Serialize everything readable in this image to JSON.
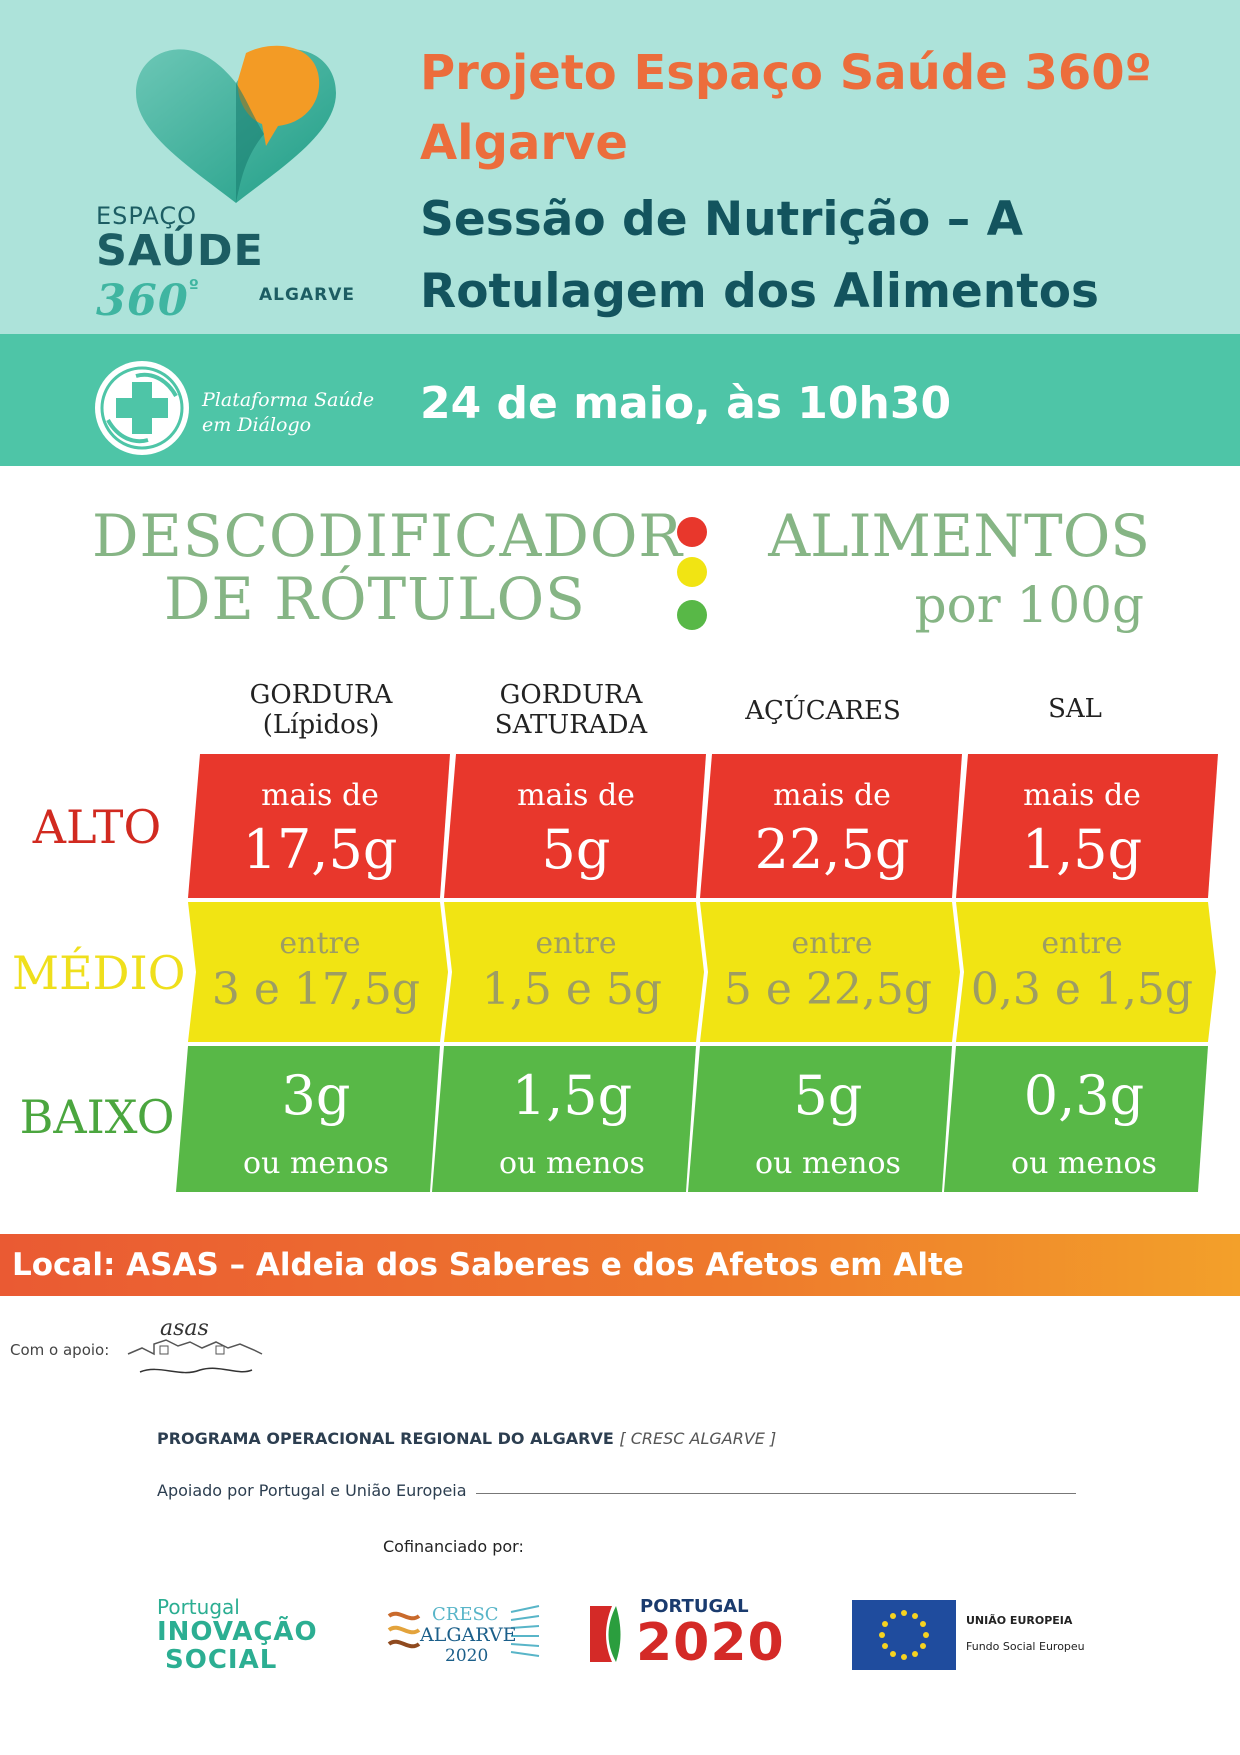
{
  "header": {
    "logo": {
      "line1": "ESPAÇO",
      "line2a": "SAÚDE",
      "line2b": "360",
      "degree": "º",
      "line3": "ALGARVE"
    },
    "project_title": "Projeto Espaço Saúde 360º Algarve",
    "session_title": "Sessão de Nutrição – A Rotulagem dos Alimentos"
  },
  "band": {
    "platform_name": "Plataforma Saúde em Diálogo",
    "date": "24 de maio, às 10h30"
  },
  "decoder": {
    "title_line1": "DESCODIFICADOR",
    "title_line2": "DE RÓTULOS",
    "subtitle_line1": "ALIMENTOS",
    "subtitle_line2": "por 100g",
    "columns": [
      "GORDURA (Lípidos)",
      "GORDURA SATURADA",
      "AÇÚCARES",
      "SAL"
    ],
    "column_lines": [
      [
        "GORDURA",
        "(Lípidos)"
      ],
      [
        "GORDURA",
        "SATURADA"
      ],
      [
        "AÇÚCARES"
      ],
      [
        "SAL"
      ]
    ],
    "rows": [
      {
        "label": "ALTO",
        "color": "#e8372c",
        "cells": [
          {
            "top": "mais de",
            "big": "17,5g"
          },
          {
            "top": "mais de",
            "big": "5g"
          },
          {
            "top": "mais de",
            "big": "22,5g"
          },
          {
            "top": "mais de",
            "big": "1,5g"
          }
        ]
      },
      {
        "label": "MÉDIO",
        "color": "#f1e413",
        "cells": [
          {
            "top": "entre",
            "big": "3 e 17,5g"
          },
          {
            "top": "entre",
            "big": "1,5 e 5g"
          },
          {
            "top": "entre",
            "big": "5 e 22,5g"
          },
          {
            "top": "entre",
            "big": "0,3 e 1,5g"
          }
        ]
      },
      {
        "label": "BAIXO",
        "color": "#58b847",
        "cells": [
          {
            "big": "3g",
            "bottom": "ou menos"
          },
          {
            "big": "1,5g",
            "bottom": "ou menos"
          },
          {
            "big": "5g",
            "bottom": "ou menos"
          },
          {
            "big": "0,3g",
            "bottom": "ou menos"
          }
        ]
      }
    ]
  },
  "location": "Local: ASAS – Aldeia dos Saberes e dos Afetos em Alte",
  "footer": {
    "support_label": "Com o apoio:",
    "asas_logo_text": "asas",
    "program": "PROGRAMA OPERACIONAL REGIONAL DO ALGARVE",
    "program_sub": "[ CRESC ALGARVE ]",
    "supported_by": "Apoiado por Portugal e União Europeia",
    "cofinanced": "Cofinanciado por:",
    "pis": {
      "l1": "Portugal",
      "l2": "INOVAÇÃO",
      "l3": "SOCIAL"
    },
    "cresc": {
      "l1": "CRESC",
      "l2": "ALGARVE",
      "l3": "2020"
    },
    "p2020": {
      "l1": "PORTUGAL",
      "l2": "2020"
    },
    "eu": {
      "l1": "UNIÃO EUROPEIA",
      "l2": "Fundo Social Europeu"
    }
  }
}
